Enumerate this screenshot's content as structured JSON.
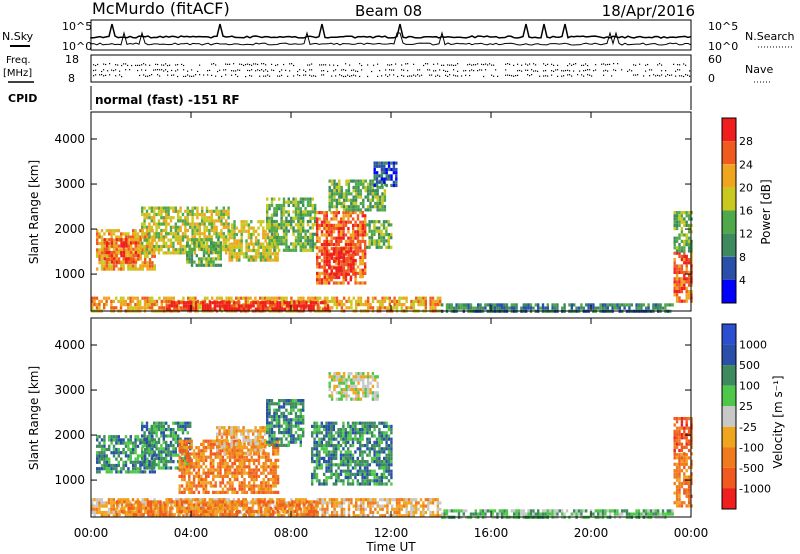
{
  "header": {
    "station": "McMurdo (fitACF)",
    "beam": "Beam 08",
    "date": "18/Apr/2016"
  },
  "noise_panel": {
    "left_label": "N.Sky",
    "right_label": "N.Search",
    "left_ticks": [
      "10^5",
      "10^0"
    ],
    "right_ticks": [
      "10^5",
      "10^0"
    ]
  },
  "freq_panel": {
    "label_line1": "Freq.",
    "label_line2": "[MHz]",
    "left_ticks": [
      "18",
      "8"
    ],
    "right_label": "Nave",
    "right_ticks": [
      "60",
      "0"
    ]
  },
  "cpid": {
    "label": "CPID",
    "text": "normal (fast) -151 RF"
  },
  "colors": {
    "power": [
      "#0000ff",
      "#2a4fa8",
      "#3c8a5e",
      "#4fa84a",
      "#c8c81e",
      "#f0a51e",
      "#f05a1e",
      "#f01e1e"
    ],
    "velocity": [
      "#2a4fd0",
      "#2a4fa8",
      "#3c8a5e",
      "#4fc84a",
      "#c8c8c8",
      "#f0a51e",
      "#f07a1e",
      "#f05a1e",
      "#f01e1e"
    ]
  },
  "chart_data": [
    {
      "type": "heatmap",
      "name": "power",
      "ylabel": "Slant Range [km]",
      "xlabel": "",
      "yticks": [
        1000,
        2000,
        3000,
        4000
      ],
      "ylim": [
        180,
        4600
      ],
      "xlim": [
        0,
        24
      ],
      "colorbar_label": "Power [dB]",
      "colorbar_ticks": [
        "4",
        "8",
        "12",
        "16",
        "20",
        "24",
        "28"
      ],
      "regions": [
        {
          "t0": 0.2,
          "t1": 2.6,
          "r0": 1100,
          "r1": 2000,
          "level": 5
        },
        {
          "t0": 0.5,
          "t1": 2.0,
          "r0": 1300,
          "r1": 1800,
          "level": 6
        },
        {
          "t0": 2.0,
          "t1": 5.5,
          "r0": 1500,
          "r1": 2500,
          "level": 4
        },
        {
          "t0": 3.8,
          "t1": 5.2,
          "r0": 1200,
          "r1": 1800,
          "level": 3
        },
        {
          "t0": 5.5,
          "t1": 7.5,
          "r0": 1300,
          "r1": 2200,
          "level": 4
        },
        {
          "t0": 7.0,
          "t1": 9.0,
          "r0": 1500,
          "r1": 2700,
          "level": 3
        },
        {
          "t0": 9.0,
          "t1": 11.0,
          "r0": 800,
          "r1": 2400,
          "level": 6
        },
        {
          "t0": 9.3,
          "t1": 10.5,
          "r0": 900,
          "r1": 1600,
          "level": 7
        },
        {
          "t0": 9.5,
          "t1": 11.8,
          "r0": 2400,
          "r1": 3100,
          "level": 3
        },
        {
          "t0": 11.0,
          "t1": 12.0,
          "r0": 1600,
          "r1": 2200,
          "level": 3
        },
        {
          "t0": 11.3,
          "t1": 12.2,
          "r0": 3000,
          "r1": 3500,
          "level": 1
        },
        {
          "t0": 0.0,
          "t1": 14.0,
          "r0": 200,
          "r1": 500,
          "level": 5
        },
        {
          "t0": 3.0,
          "t1": 9.5,
          "r0": 200,
          "r1": 400,
          "level": 7
        },
        {
          "t0": 14.0,
          "t1": 23.3,
          "r0": 200,
          "r1": 350,
          "level": 2
        },
        {
          "t0": 23.3,
          "t1": 24.0,
          "r0": 400,
          "r1": 1500,
          "level": 6
        },
        {
          "t0": 23.3,
          "t1": 24.0,
          "r0": 1500,
          "r1": 2400,
          "level": 3
        }
      ]
    },
    {
      "type": "heatmap",
      "name": "velocity",
      "ylabel": "Slant Range [km]",
      "xlabel": "Time UT",
      "yticks": [
        1000,
        2000,
        3000,
        4000
      ],
      "ylim": [
        180,
        4600
      ],
      "xlim": [
        0,
        24
      ],
      "xticks": [
        "00:00",
        "04:00",
        "08:00",
        "12:00",
        "16:00",
        "20:00",
        "00:00"
      ],
      "colorbar_label": "Velocity [m s⁻¹]",
      "colorbar_ticks": [
        "1000",
        "500",
        "100",
        "25",
        "-25",
        "-100",
        "-500",
        "-1000"
      ],
      "regions": [
        {
          "t0": 0.2,
          "t1": 2.6,
          "r0": 1200,
          "r1": 2000,
          "level": 2
        },
        {
          "t0": 2.0,
          "t1": 4.0,
          "r0": 1300,
          "r1": 2300,
          "level": 2
        },
        {
          "t0": 3.5,
          "t1": 7.5,
          "r0": 700,
          "r1": 1900,
          "level": 6
        },
        {
          "t0": 5.0,
          "t1": 7.0,
          "r0": 1600,
          "r1": 2200,
          "level": 5
        },
        {
          "t0": 7.0,
          "t1": 8.5,
          "r0": 1800,
          "r1": 2800,
          "level": 2
        },
        {
          "t0": 8.8,
          "t1": 12.0,
          "r0": 900,
          "r1": 2300,
          "level": 2
        },
        {
          "t0": 9.5,
          "t1": 11.5,
          "r0": 2800,
          "r1": 3400,
          "level": 4
        },
        {
          "t0": 0.0,
          "t1": 14.0,
          "r0": 200,
          "r1": 600,
          "level": 5
        },
        {
          "t0": 1.0,
          "t1": 9.0,
          "r0": 250,
          "r1": 550,
          "level": 6
        },
        {
          "t0": 14.0,
          "t1": 23.3,
          "r0": 200,
          "r1": 350,
          "level": 3
        },
        {
          "t0": 23.3,
          "t1": 24.0,
          "r0": 400,
          "r1": 1600,
          "level": 6
        },
        {
          "t0": 23.3,
          "t1": 24.0,
          "r0": 1600,
          "r1": 2400,
          "level": 7
        }
      ]
    }
  ]
}
